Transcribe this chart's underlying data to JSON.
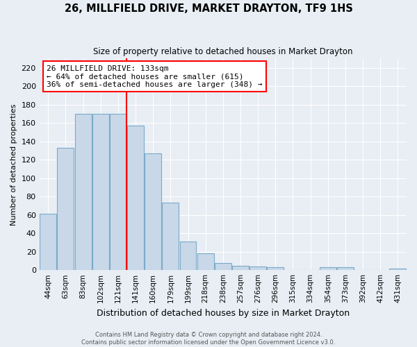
{
  "title": "26, MILLFIELD DRIVE, MARKET DRAYTON, TF9 1HS",
  "subtitle": "Size of property relative to detached houses in Market Drayton",
  "xlabel": "Distribution of detached houses by size in Market Drayton",
  "ylabel": "Number of detached properties",
  "bar_color": "#c8d8e8",
  "bar_edge_color": "#7aaac8",
  "categories": [
    "44sqm",
    "63sqm",
    "83sqm",
    "102sqm",
    "121sqm",
    "141sqm",
    "160sqm",
    "179sqm",
    "199sqm",
    "218sqm",
    "238sqm",
    "257sqm",
    "276sqm",
    "296sqm",
    "315sqm",
    "334sqm",
    "354sqm",
    "373sqm",
    "392sqm",
    "412sqm",
    "431sqm"
  ],
  "values": [
    61,
    133,
    170,
    170,
    170,
    157,
    127,
    73,
    31,
    18,
    8,
    5,
    4,
    3,
    0,
    0,
    3,
    3,
    0,
    0,
    2
  ],
  "annotation_text": "26 MILLFIELD DRIVE: 133sqm\n← 64% of detached houses are smaller (615)\n36% of semi-detached houses are larger (348) →",
  "red_line_x": 4.5,
  "ylim": [
    0,
    230
  ],
  "yticks": [
    0,
    20,
    40,
    60,
    80,
    100,
    120,
    140,
    160,
    180,
    200,
    220
  ],
  "footer_line1": "Contains HM Land Registry data © Crown copyright and database right 2024.",
  "footer_line2": "Contains public sector information licensed under the Open Government Licence v3.0.",
  "background_color": "#e8eef4",
  "figsize": [
    6.0,
    5.0
  ],
  "dpi": 100
}
